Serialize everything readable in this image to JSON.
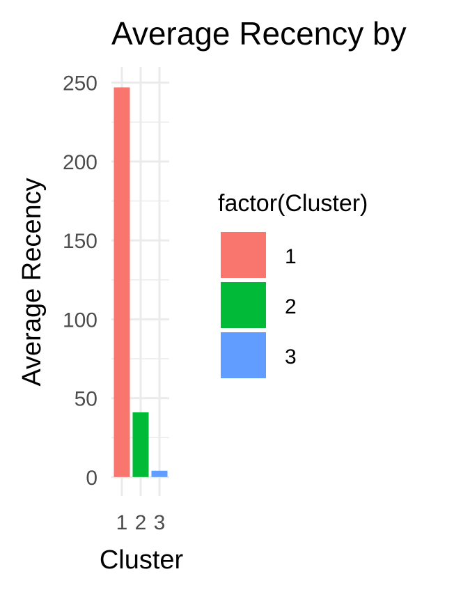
{
  "chart_data": {
    "type": "bar",
    "title": "Average Recency by",
    "xlabel": "Cluster",
    "ylabel": "Average Recency",
    "categories": [
      "1",
      "2",
      "3"
    ],
    "values": [
      247,
      41,
      4
    ],
    "colors": [
      "#F8766D",
      "#00BA38",
      "#619CFF"
    ],
    "ylim": [
      -12,
      260
    ],
    "yticks": [
      0,
      50,
      100,
      150,
      200,
      250
    ],
    "grid": true,
    "legend": {
      "title": "factor(Cluster)",
      "entries": [
        "1",
        "2",
        "3"
      ],
      "placement": "right"
    }
  }
}
